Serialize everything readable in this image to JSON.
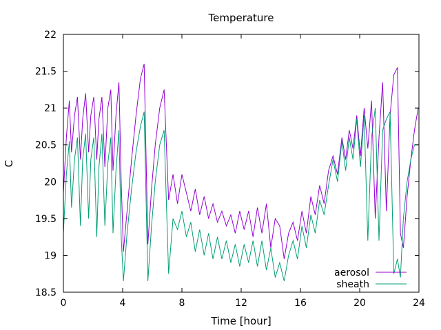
{
  "chart_data": {
    "type": "line",
    "title": "Temperature",
    "xlabel": "Time [hour]",
    "ylabel": "C",
    "xlim": [
      0,
      24
    ],
    "ylim": [
      18.5,
      22
    ],
    "x_ticks": [
      0,
      4,
      8,
      12,
      16,
      20,
      24
    ],
    "x_tick_labels": [
      "0",
      "4",
      "8",
      "12",
      "16",
      "20",
      "24"
    ],
    "y_ticks": [
      18.5,
      19,
      19.5,
      20,
      20.5,
      21,
      21.5,
      22
    ],
    "y_tick_labels": [
      "18.5",
      "19",
      "19.5",
      "20",
      "20.5",
      "21",
      "21.5",
      "22"
    ],
    "grid": false,
    "legend_position": "bottom-right",
    "series": [
      {
        "name": "aerosol",
        "color": "#9400d3",
        "x": [
          0,
          0.2,
          0.4,
          0.55,
          0.75,
          0.95,
          1.15,
          1.3,
          1.5,
          1.7,
          1.85,
          2.05,
          2.25,
          2.4,
          2.6,
          2.8,
          3.0,
          3.2,
          3.35,
          3.55,
          3.75,
          3.9,
          4.05,
          4.3,
          4.6,
          4.9,
          5.2,
          5.45,
          5.7,
          5.95,
          6.2,
          6.5,
          6.8,
          7.1,
          7.4,
          7.7,
          8.0,
          8.3,
          8.6,
          8.9,
          9.2,
          9.5,
          9.8,
          10.1,
          10.4,
          10.7,
          11.0,
          11.3,
          11.6,
          11.9,
          12.2,
          12.5,
          12.8,
          13.1,
          13.4,
          13.7,
          14.0,
          14.3,
          14.6,
          14.9,
          15.2,
          15.5,
          15.8,
          16.1,
          16.4,
          16.7,
          17.0,
          17.3,
          17.6,
          17.9,
          18.2,
          18.5,
          18.8,
          19.05,
          19.3,
          19.55,
          19.8,
          20.05,
          20.3,
          20.55,
          20.8,
          21.05,
          21.3,
          21.55,
          21.8,
          22.05,
          22.3,
          22.55,
          22.75,
          22.95,
          23.2,
          23.45,
          23.7,
          23.95
        ],
        "y": [
          19.85,
          20.6,
          21.1,
          20.4,
          20.9,
          21.15,
          20.3,
          20.85,
          21.2,
          20.4,
          20.9,
          21.15,
          20.3,
          20.85,
          21.15,
          20.2,
          21.0,
          21.25,
          20.15,
          20.9,
          21.35,
          20.0,
          19.05,
          19.6,
          20.3,
          20.9,
          21.4,
          21.6,
          19.15,
          19.9,
          20.5,
          21.0,
          21.25,
          19.75,
          20.1,
          19.7,
          20.1,
          19.85,
          19.6,
          19.9,
          19.55,
          19.8,
          19.5,
          19.7,
          19.45,
          19.6,
          19.4,
          19.55,
          19.3,
          19.6,
          19.35,
          19.6,
          19.25,
          19.65,
          19.3,
          19.7,
          19.1,
          19.5,
          19.4,
          18.95,
          19.3,
          19.45,
          19.2,
          19.6,
          19.3,
          19.8,
          19.55,
          19.95,
          19.7,
          20.15,
          20.35,
          20.1,
          20.6,
          20.3,
          20.7,
          20.45,
          20.9,
          20.35,
          21.0,
          20.45,
          21.1,
          19.5,
          20.6,
          21.35,
          19.6,
          20.9,
          21.45,
          21.55,
          19.3,
          19.1,
          19.8,
          20.3,
          20.7,
          21.0
        ]
      },
      {
        "name": "sheath",
        "color": "#009e73",
        "x": [
          0,
          0.2,
          0.4,
          0.55,
          0.75,
          0.95,
          1.15,
          1.3,
          1.5,
          1.7,
          1.85,
          2.05,
          2.25,
          2.4,
          2.6,
          2.8,
          3.0,
          3.2,
          3.35,
          3.55,
          3.75,
          3.9,
          4.05,
          4.3,
          4.6,
          4.9,
          5.2,
          5.45,
          5.7,
          5.95,
          6.2,
          6.5,
          6.8,
          7.1,
          7.4,
          7.7,
          8.0,
          8.3,
          8.6,
          8.9,
          9.2,
          9.5,
          9.8,
          10.1,
          10.4,
          10.7,
          11.0,
          11.3,
          11.6,
          11.9,
          12.2,
          12.5,
          12.8,
          13.1,
          13.4,
          13.7,
          14.0,
          14.3,
          14.6,
          14.9,
          15.2,
          15.5,
          15.8,
          16.1,
          16.4,
          16.7,
          17.0,
          17.3,
          17.6,
          17.9,
          18.2,
          18.5,
          18.8,
          19.05,
          19.3,
          19.55,
          19.8,
          20.05,
          20.3,
          20.55,
          20.8,
          21.05,
          21.3,
          21.55,
          21.8,
          22.05,
          22.3,
          22.55,
          22.75,
          22.95,
          23.2,
          23.45,
          23.7,
          23.95
        ],
        "y": [
          19.3,
          20.1,
          20.55,
          19.65,
          20.3,
          20.6,
          19.4,
          20.3,
          20.65,
          19.5,
          20.3,
          20.6,
          19.25,
          20.2,
          20.65,
          19.4,
          20.25,
          20.6,
          19.3,
          20.15,
          20.7,
          19.25,
          18.65,
          19.3,
          19.9,
          20.4,
          20.75,
          20.95,
          18.65,
          19.4,
          20.0,
          20.5,
          20.7,
          18.75,
          19.5,
          19.35,
          19.6,
          19.25,
          19.45,
          19.05,
          19.35,
          19.0,
          19.3,
          18.95,
          19.25,
          18.95,
          19.2,
          18.9,
          19.15,
          18.85,
          19.15,
          18.9,
          19.2,
          18.85,
          19.2,
          18.8,
          19.1,
          18.7,
          18.9,
          18.65,
          19.0,
          19.2,
          18.95,
          19.4,
          19.1,
          19.55,
          19.3,
          19.75,
          19.55,
          19.95,
          20.3,
          20.0,
          20.55,
          20.15,
          20.6,
          20.3,
          20.85,
          20.2,
          20.9,
          19.2,
          20.6,
          21.0,
          19.2,
          20.7,
          20.85,
          20.95,
          18.75,
          18.95,
          18.7,
          19.5,
          20.0,
          20.3,
          20.5,
          20.5
        ]
      }
    ]
  }
}
